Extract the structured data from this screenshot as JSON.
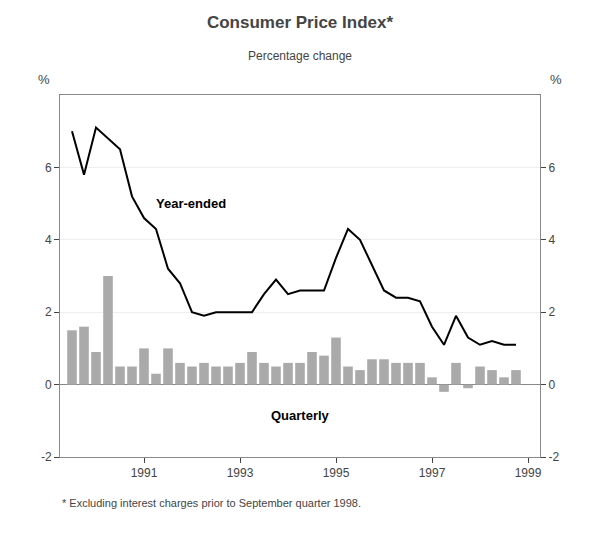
{
  "chart_data": {
    "type": "bar",
    "title": "Consumer Price Index*",
    "subtitle": "Percentage change",
    "ylabel": "%",
    "y2label": "%",
    "annotations": [
      "* Excluding interest charges prior to September quarter 1998."
    ],
    "x": [
      1989.5,
      1989.75,
      1990.0,
      1990.25,
      1990.5,
      1990.75,
      1991.0,
      1991.25,
      1991.5,
      1991.75,
      1992.0,
      1992.25,
      1992.5,
      1992.75,
      1993.0,
      1993.25,
      1993.5,
      1993.75,
      1994.0,
      1994.25,
      1994.5,
      1994.75,
      1995.0,
      1995.25,
      1995.5,
      1995.75,
      1996.0,
      1996.25,
      1996.5,
      1996.75,
      1997.0,
      1997.25,
      1997.5,
      1997.75,
      1998.0,
      1998.25,
      1998.5,
      1998.75
    ],
    "series": [
      {
        "name": "Quarterly",
        "type": "bar",
        "color": "#aaaaaa",
        "values": [
          1.5,
          1.6,
          0.9,
          3.0,
          0.5,
          0.5,
          1.0,
          0.3,
          1.0,
          0.6,
          0.5,
          0.6,
          0.5,
          0.5,
          0.6,
          0.9,
          0.6,
          0.5,
          0.6,
          0.6,
          0.9,
          0.8,
          1.3,
          0.5,
          0.4,
          0.7,
          0.7,
          0.6,
          0.6,
          0.6,
          0.2,
          -0.2,
          0.6,
          -0.1,
          0.5,
          0.4,
          0.2,
          0.4
        ]
      },
      {
        "name": "Year-ended",
        "type": "line",
        "color": "#000000",
        "values": [
          7.0,
          5.8,
          7.1,
          6.8,
          6.5,
          5.2,
          4.6,
          4.3,
          3.2,
          2.8,
          2.0,
          1.9,
          2.0,
          2.0,
          2.0,
          2.0,
          2.5,
          2.9,
          2.5,
          2.6,
          2.6,
          2.6,
          3.5,
          4.3,
          4.0,
          3.3,
          2.6,
          2.4,
          2.4,
          2.3,
          1.6,
          1.1,
          1.9,
          1.3,
          1.1,
          1.2,
          1.1,
          1.1
        ]
      }
    ],
    "xlim": [
      1989.25,
      1999.25
    ],
    "xticks": [
      1991,
      1993,
      1995,
      1997,
      1999
    ],
    "ylim": [
      -2,
      8
    ],
    "yticks": [
      -2,
      0,
      2,
      4,
      6
    ],
    "y2lim": [
      -2,
      8
    ],
    "y2ticks": [
      -2,
      0,
      2,
      4,
      6
    ],
    "grid": true
  }
}
